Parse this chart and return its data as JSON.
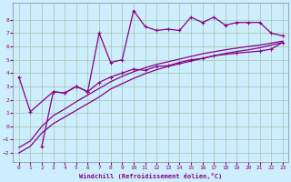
{
  "background_color": "#cceeff",
  "grid_color": "#aaccbb",
  "line_color": "#880088",
  "xlabel": "Windchill (Refroidissement éolien,°C)",
  "xlim": [
    -0.5,
    23.5
  ],
  "ylim": [
    -2.7,
    9.3
  ],
  "yticks": [
    -2,
    -1,
    0,
    1,
    2,
    3,
    4,
    5,
    6,
    7,
    8
  ],
  "xticks": [
    0,
    1,
    2,
    3,
    4,
    5,
    6,
    7,
    8,
    9,
    10,
    11,
    12,
    13,
    14,
    15,
    16,
    17,
    18,
    19,
    20,
    21,
    22,
    23
  ],
  "curve1_x": [
    0,
    1,
    2,
    3,
    4,
    5,
    6,
    7,
    8,
    9,
    10,
    11,
    12,
    13,
    14,
    15,
    16,
    17,
    18,
    19,
    20,
    21,
    22,
    23
  ],
  "curve1_y": [
    -2.0,
    -1.5,
    -0.5,
    0.2,
    0.7,
    1.2,
    1.7,
    2.2,
    2.8,
    3.2,
    3.6,
    3.95,
    4.25,
    4.5,
    4.7,
    4.9,
    5.1,
    5.3,
    5.48,
    5.62,
    5.75,
    5.9,
    6.1,
    6.3
  ],
  "curve2_x": [
    0,
    1,
    2,
    3,
    4,
    5,
    6,
    7,
    8,
    9,
    10,
    11,
    12,
    13,
    14,
    15,
    16,
    17,
    18,
    19,
    20,
    21,
    22,
    23
  ],
  "curve2_y": [
    -1.6,
    -1.1,
    0.0,
    0.8,
    1.3,
    1.85,
    2.35,
    2.85,
    3.35,
    3.75,
    4.1,
    4.4,
    4.65,
    4.85,
    5.05,
    5.25,
    5.45,
    5.6,
    5.75,
    5.88,
    6.0,
    6.1,
    6.25,
    6.4
  ],
  "jagged1_x": [
    0,
    1,
    3,
    4,
    5,
    6,
    7,
    8,
    9,
    10,
    11,
    12,
    13,
    14,
    15,
    16,
    17,
    19,
    21,
    22,
    23
  ],
  "jagged1_y": [
    3.7,
    1.1,
    2.6,
    2.5,
    3.0,
    2.6,
    3.3,
    3.7,
    4.0,
    4.3,
    4.2,
    4.5,
    4.55,
    4.8,
    5.0,
    5.1,
    5.3,
    5.5,
    5.65,
    5.8,
    6.3
  ],
  "jagged2_x": [
    2,
    3,
    4,
    5,
    6,
    7,
    8,
    9,
    10,
    11,
    12,
    13,
    14,
    15,
    16,
    17,
    18,
    19,
    20,
    21,
    22,
    23
  ],
  "jagged2_y": [
    -1.5,
    2.6,
    2.5,
    3.0,
    2.6,
    7.0,
    4.8,
    5.0,
    8.7,
    7.5,
    7.2,
    7.3,
    7.2,
    8.2,
    7.8,
    8.2,
    7.6,
    7.8,
    7.8,
    7.8,
    7.0,
    6.8
  ]
}
